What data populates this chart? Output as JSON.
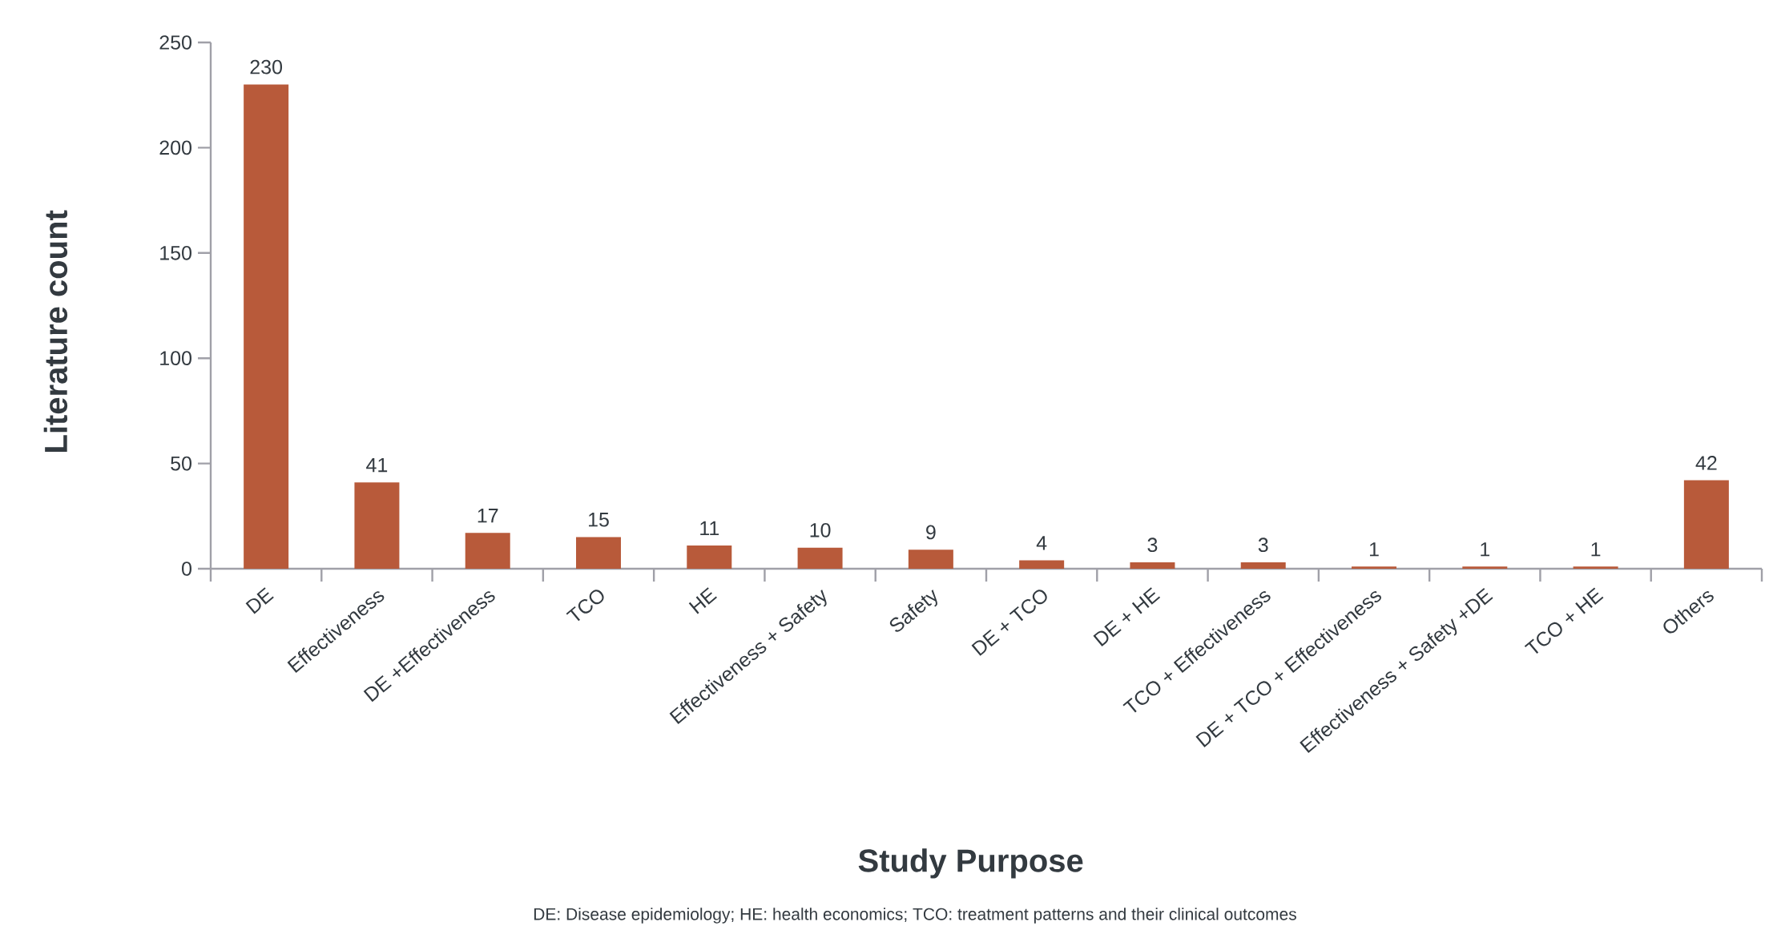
{
  "chart_data": {
    "type": "bar",
    "xlabel": "Study Purpose",
    "ylabel": "Literature count",
    "categories": [
      "DE",
      "Effectiveness",
      "DE +Effectiveness",
      "TCO",
      "HE",
      "Effectiveness + Safety",
      "Safety",
      "DE + TCO",
      "DE + HE",
      "TCO + Effectiveness",
      "DE + TCO + Effectiveness",
      "Effectiveness + Safety +DE",
      "TCO + HE",
      "Others"
    ],
    "values": [
      230,
      41,
      17,
      15,
      11,
      10,
      9,
      4,
      3,
      3,
      1,
      1,
      1,
      42
    ],
    "color": "#b85a3a",
    "data_labels": true,
    "grid": false,
    "ylim": [
      0,
      250
    ],
    "yticks": [
      0,
      50,
      100,
      150,
      200,
      250
    ],
    "annotations": [
      "DE: Disease epidemiology; HE: health economics; TCO: treatment patterns and their clinical outcomes"
    ]
  }
}
